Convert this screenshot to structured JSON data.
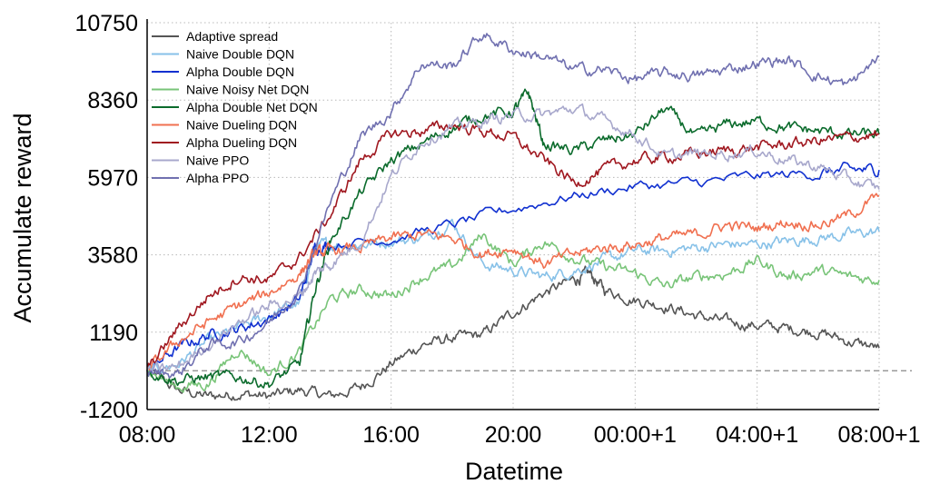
{
  "chart_data": {
    "type": "line",
    "xlabel": "Datetime",
    "ylabel": "Accumulate reward",
    "x_ticks": [
      "08:00",
      "12:00",
      "16:00",
      "20:00",
      "00:00+1",
      "04:00+1",
      "08:00+1"
    ],
    "y_ticks": [
      -1200,
      1190,
      3580,
      5970,
      8360,
      10750
    ],
    "ylim": [
      -1200,
      10750
    ],
    "xlim_hours": [
      0,
      24
    ],
    "grid": true,
    "baseline": 0,
    "legend_position": "top-left",
    "series": [
      {
        "name": "Adaptive spread",
        "color": "#555555",
        "points": [
          [
            0,
            0
          ],
          [
            1,
            -600
          ],
          [
            2,
            -800
          ],
          [
            3,
            -700
          ],
          [
            4,
            -800
          ],
          [
            5,
            -600
          ],
          [
            6,
            -800
          ],
          [
            7,
            -500
          ],
          [
            8,
            200
          ],
          [
            9,
            800
          ],
          [
            10,
            1000
          ],
          [
            11,
            1100
          ],
          [
            12,
            1800
          ],
          [
            13,
            2400
          ],
          [
            14,
            2800
          ],
          [
            14.5,
            3000
          ],
          [
            15,
            2500
          ],
          [
            16,
            2200
          ],
          [
            17,
            2000
          ],
          [
            18,
            1700
          ],
          [
            19,
            1500
          ],
          [
            20,
            1400
          ],
          [
            21,
            1300
          ],
          [
            22,
            1200
          ],
          [
            23,
            900
          ],
          [
            24,
            700
          ]
        ]
      },
      {
        "name": "Naive Double DQN",
        "color": "#87c1e8",
        "points": [
          [
            0,
            0
          ],
          [
            1,
            200
          ],
          [
            2,
            900
          ],
          [
            3,
            1300
          ],
          [
            4,
            1700
          ],
          [
            5,
            2100
          ],
          [
            5.5,
            3800
          ],
          [
            6,
            3900
          ],
          [
            7,
            3900
          ],
          [
            8,
            4000
          ],
          [
            9,
            4100
          ],
          [
            10,
            4600
          ],
          [
            11,
            3300
          ],
          [
            12,
            3100
          ],
          [
            13,
            2900
          ],
          [
            14,
            3100
          ],
          [
            15,
            3400
          ],
          [
            16,
            3700
          ],
          [
            17,
            3700
          ],
          [
            18,
            3800
          ],
          [
            19,
            3900
          ],
          [
            20,
            3900
          ],
          [
            21,
            4000
          ],
          [
            22,
            4100
          ],
          [
            23,
            4200
          ],
          [
            24,
            4300
          ]
        ]
      },
      {
        "name": "Alpha Double DQN",
        "color": "#1030d0",
        "points": [
          [
            0,
            0
          ],
          [
            1,
            700
          ],
          [
            2,
            1100
          ],
          [
            3,
            1300
          ],
          [
            4,
            1600
          ],
          [
            5,
            2200
          ],
          [
            5.5,
            3800
          ],
          [
            6,
            3900
          ],
          [
            8,
            4100
          ],
          [
            10,
            4500
          ],
          [
            12,
            5000
          ],
          [
            14,
            5400
          ],
          [
            16,
            5700
          ],
          [
            18,
            5800
          ],
          [
            20,
            6000
          ],
          [
            22,
            6100
          ],
          [
            23,
            6200
          ],
          [
            24,
            6200
          ]
        ]
      },
      {
        "name": "Naive Noisy Net DQN",
        "color": "#78c478",
        "points": [
          [
            0,
            0
          ],
          [
            1,
            -500
          ],
          [
            2,
            -400
          ],
          [
            3,
            700
          ],
          [
            4,
            -100
          ],
          [
            5,
            600
          ],
          [
            6,
            2200
          ],
          [
            7,
            2500
          ],
          [
            8,
            2300
          ],
          [
            9,
            2900
          ],
          [
            10,
            3200
          ],
          [
            11,
            4200
          ],
          [
            12,
            3300
          ],
          [
            13,
            4000
          ],
          [
            14,
            3500
          ],
          [
            15,
            3200
          ],
          [
            16,
            3000
          ],
          [
            17,
            2600
          ],
          [
            18,
            2900
          ],
          [
            19,
            3000
          ],
          [
            20,
            3400
          ],
          [
            21,
            2900
          ],
          [
            22,
            3100
          ],
          [
            23,
            2900
          ],
          [
            24,
            2800
          ]
        ]
      },
      {
        "name": "Alpha Double Net DQN",
        "color": "#0b6b2c",
        "points": [
          [
            0,
            0
          ],
          [
            1,
            -300
          ],
          [
            2,
            -200
          ],
          [
            3,
            -200
          ],
          [
            4,
            -400
          ],
          [
            5,
            200
          ],
          [
            5.5,
            2500
          ],
          [
            6,
            4000
          ],
          [
            7,
            5500
          ],
          [
            8,
            6500
          ],
          [
            9,
            7000
          ],
          [
            10,
            7500
          ],
          [
            11,
            7900
          ],
          [
            12,
            8000
          ],
          [
            12.5,
            8600
          ],
          [
            13,
            7000
          ],
          [
            14,
            6800
          ],
          [
            15,
            7100
          ],
          [
            16,
            7300
          ],
          [
            17,
            8100
          ],
          [
            18,
            7200
          ],
          [
            19,
            7600
          ],
          [
            20,
            7700
          ],
          [
            21,
            7500
          ],
          [
            22,
            7400
          ],
          [
            23,
            7300
          ],
          [
            24,
            7300
          ]
        ]
      },
      {
        "name": "Naive Dueling DQN",
        "color": "#f07050",
        "points": [
          [
            0,
            0
          ],
          [
            1,
            900
          ],
          [
            2,
            1500
          ],
          [
            3,
            2000
          ],
          [
            4,
            2400
          ],
          [
            5,
            3000
          ],
          [
            5.5,
            3600
          ],
          [
            6,
            3700
          ],
          [
            7,
            3800
          ],
          [
            8,
            4100
          ],
          [
            9,
            4200
          ],
          [
            10,
            4100
          ],
          [
            11,
            3600
          ],
          [
            12,
            3800
          ],
          [
            13,
            3300
          ],
          [
            14,
            3600
          ],
          [
            15,
            3800
          ],
          [
            16,
            3900
          ],
          [
            17,
            4100
          ],
          [
            18,
            4200
          ],
          [
            19,
            4500
          ],
          [
            20,
            4400
          ],
          [
            21,
            4600
          ],
          [
            22,
            4500
          ],
          [
            23,
            4800
          ],
          [
            24,
            5400
          ]
        ]
      },
      {
        "name": "Alpha Dueling DQN",
        "color": "#a01820",
        "points": [
          [
            0,
            0
          ],
          [
            1,
            1300
          ],
          [
            2,
            2300
          ],
          [
            3,
            2900
          ],
          [
            4,
            2800
          ],
          [
            5,
            3500
          ],
          [
            6,
            4800
          ],
          [
            7,
            6500
          ],
          [
            8,
            7300
          ],
          [
            9,
            7400
          ],
          [
            10,
            7600
          ],
          [
            11,
            7400
          ],
          [
            12,
            7200
          ],
          [
            13,
            6500
          ],
          [
            14,
            5800
          ],
          [
            15,
            6200
          ],
          [
            16,
            6500
          ],
          [
            17,
            6600
          ],
          [
            18,
            6700
          ],
          [
            19,
            6800
          ],
          [
            20,
            6900
          ],
          [
            21,
            7000
          ],
          [
            22,
            7100
          ],
          [
            23,
            7200
          ],
          [
            24,
            7300
          ]
        ]
      },
      {
        "name": "Naive PPO",
        "color": "#a8a8cc",
        "points": [
          [
            0,
            0
          ],
          [
            1,
            100
          ],
          [
            2,
            800
          ],
          [
            3,
            1500
          ],
          [
            4,
            2000
          ],
          [
            5,
            2300
          ],
          [
            5.5,
            3000
          ],
          [
            6,
            3300
          ],
          [
            7,
            4000
          ],
          [
            8,
            6000
          ],
          [
            9,
            7100
          ],
          [
            10,
            7500
          ],
          [
            11,
            7700
          ],
          [
            12,
            7900
          ],
          [
            13,
            7900
          ],
          [
            14,
            8100
          ],
          [
            15,
            7700
          ],
          [
            16,
            7300
          ],
          [
            17,
            6600
          ],
          [
            18,
            6700
          ],
          [
            19,
            6700
          ],
          [
            20,
            6800
          ],
          [
            21,
            6500
          ],
          [
            22,
            6300
          ],
          [
            23,
            5900
          ],
          [
            24,
            5600
          ]
        ]
      },
      {
        "name": "Alpha PPO",
        "color": "#7070b0",
        "points": [
          [
            0,
            0
          ],
          [
            1,
            -100
          ],
          [
            2,
            800
          ],
          [
            3,
            900
          ],
          [
            4,
            1500
          ],
          [
            5,
            2500
          ],
          [
            6,
            5200
          ],
          [
            7,
            7200
          ],
          [
            8,
            8000
          ],
          [
            9,
            9500
          ],
          [
            10,
            9400
          ],
          [
            11,
            10400
          ],
          [
            12,
            9900
          ],
          [
            13,
            9700
          ],
          [
            14,
            9300
          ],
          [
            15,
            9300
          ],
          [
            16,
            9000
          ],
          [
            17,
            9200
          ],
          [
            18,
            9100
          ],
          [
            19,
            9300
          ],
          [
            20,
            9500
          ],
          [
            21,
            9600
          ],
          [
            22,
            9100
          ],
          [
            23,
            8800
          ],
          [
            24,
            9700
          ]
        ]
      }
    ]
  }
}
